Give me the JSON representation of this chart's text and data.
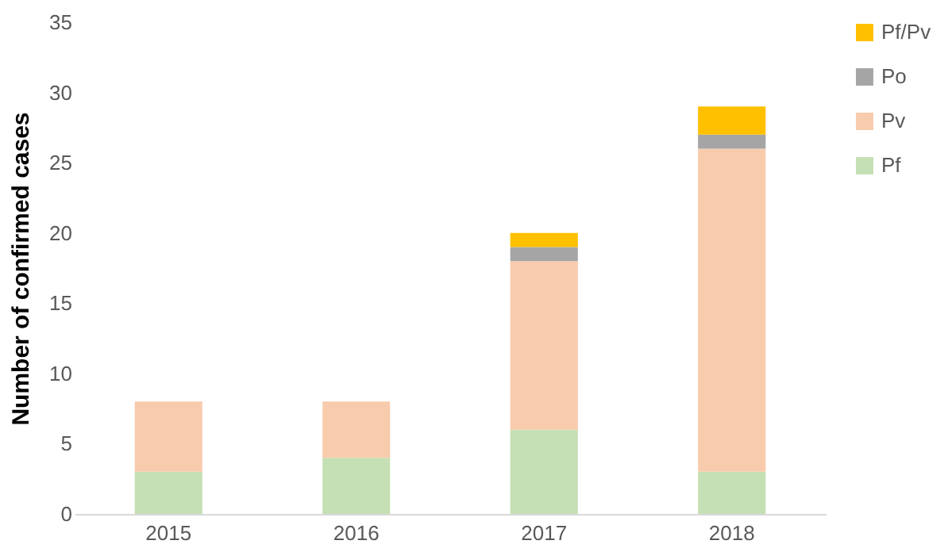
{
  "chart_data": {
    "type": "bar",
    "stacked": true,
    "ylabel": "Number of confirmed cases",
    "categories": [
      "2015",
      "2016",
      "2017",
      "2018"
    ],
    "series": [
      {
        "name": "Pf",
        "color": "#c5e0b4",
        "values": [
          3,
          4,
          6,
          3
        ]
      },
      {
        "name": "Pv",
        "color": "#f8cbad",
        "values": [
          5,
          4,
          12,
          23
        ]
      },
      {
        "name": "Po",
        "color": "#a5a5a5",
        "values": [
          0,
          0,
          1,
          1
        ]
      },
      {
        "name": "Pf/Pv",
        "color": "#ffc000",
        "values": [
          0,
          0,
          1,
          2
        ]
      }
    ],
    "ylim": [
      0,
      35
    ],
    "yticks": [
      0,
      5,
      10,
      15,
      20,
      25,
      30,
      35
    ],
    "grid": false,
    "legend": "right"
  }
}
